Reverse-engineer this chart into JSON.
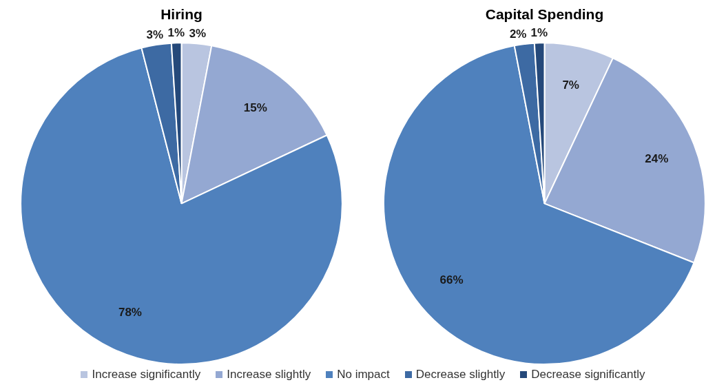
{
  "chart_data": [
    {
      "type": "pie",
      "title": "Hiring",
      "categories": [
        "Increase significantly",
        "Increase slightly",
        "No impact",
        "Decrease slightly",
        "Decrease significantly"
      ],
      "values": [
        3,
        15,
        78,
        3,
        1
      ],
      "value_labels": [
        "3%",
        "15%",
        "78%",
        "3%",
        "1%"
      ],
      "colors": [
        "#b9c5e0",
        "#94a8d2",
        "#4f81bd",
        "#3d6aa3",
        "#25497a"
      ],
      "legend": "bottom"
    },
    {
      "type": "pie",
      "title": "Capital Spending",
      "categories": [
        null,
        null,
        null,
        null,
        null
      ],
      "values": [
        7,
        24,
        66,
        2,
        1
      ],
      "value_labels": [
        "7%",
        "24%",
        "66%",
        "2%",
        "1%"
      ],
      "colors": [
        "#b9c5e0",
        "#94a8d2",
        "#4f81bd",
        "#3d6aa3",
        "#25497a"
      ]
    }
  ]
}
